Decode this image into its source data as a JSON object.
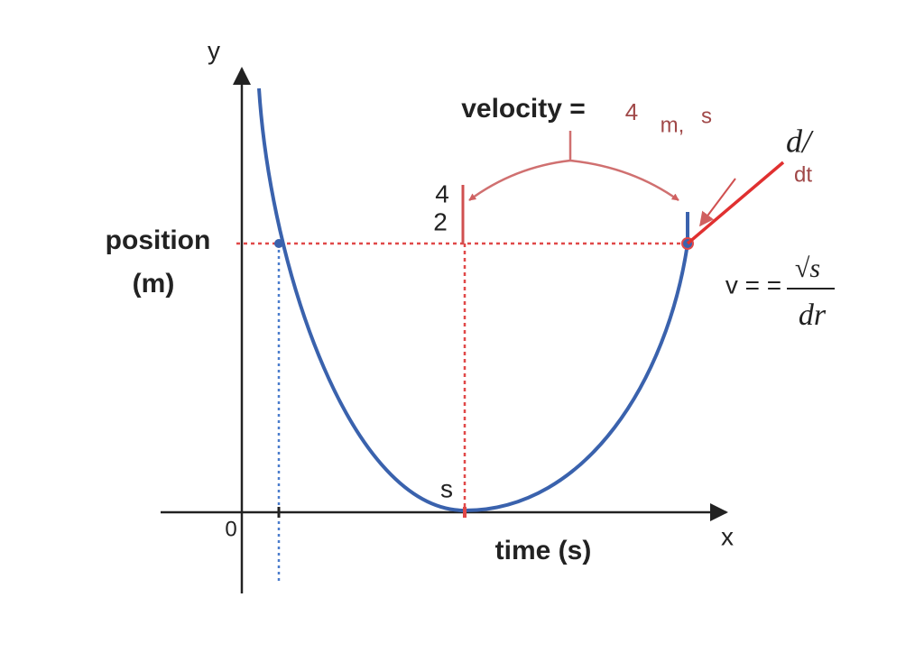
{
  "axes": {
    "y_label": "y",
    "x_label": "x",
    "origin": "0",
    "y_title": [
      "position",
      "(m)"
    ],
    "x_title": "time (s)"
  },
  "markers": {
    "min_label": "s",
    "tick_upper": "4",
    "tick_lower": "2"
  },
  "velocity": {
    "label": "velocity =",
    "value": "4",
    "unit_a": "m,",
    "unit_b": "s"
  },
  "derivative": {
    "top": "d/",
    "bottom": "dt"
  },
  "formula": {
    "lhs": "v = =",
    "numerator": "√s",
    "denominator": "dr"
  }
}
